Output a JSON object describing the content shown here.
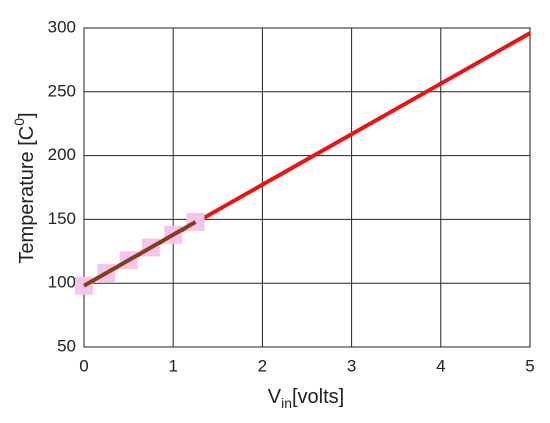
{
  "chart_data": {
    "type": "line",
    "xlabel": [
      "V",
      "in",
      "[volts]"
    ],
    "ylabel": [
      "Temperature [C",
      "0",
      "]"
    ],
    "xlim": [
      0,
      5
    ],
    "xticks": [
      0,
      1,
      2,
      3,
      4,
      5
    ],
    "ylim": [
      50,
      300
    ],
    "yticks": [
      50,
      100,
      150,
      200,
      250,
      300
    ],
    "grid": true,
    "series": [
      {
        "color": "#ee1111",
        "x": [
          0,
          5
        ],
        "values": [
          98,
          296
        ]
      },
      {
        "color": "#8b3a1a",
        "marker_color": "#f4c6ee",
        "x": [
          0,
          0.25,
          0.5,
          0.75,
          1,
          1.25
        ],
        "values": [
          98,
          108,
          118,
          128,
          138,
          148
        ]
      }
    ]
  }
}
